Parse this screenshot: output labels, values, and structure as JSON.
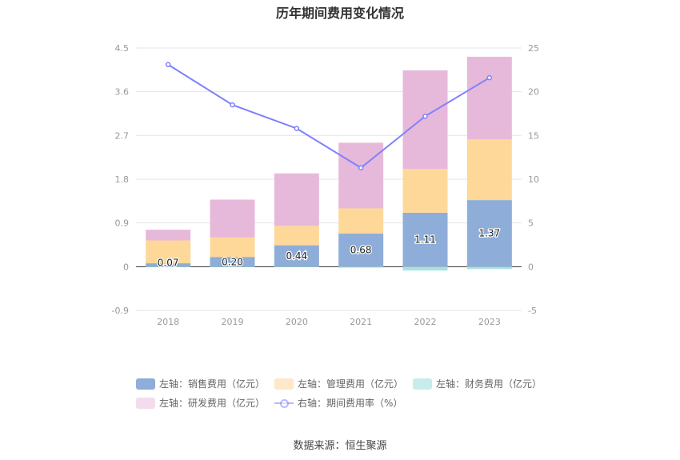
{
  "title": "历年期间费用变化情况",
  "source": "数据来源：恒生聚源",
  "colors": {
    "sales": "#8eadd8",
    "admin": "#fdd899",
    "finance": "#aedfe0",
    "rd": "#e6b9da",
    "rate": "#8080ff"
  },
  "chart_data": {
    "type": "bar",
    "categories": [
      "2018",
      "2019",
      "2020",
      "2021",
      "2022",
      "2023"
    ],
    "left_axis": {
      "ticks": [
        "4.5",
        "3.6",
        "2.7",
        "1.8",
        "0.9",
        "0",
        "-0.9"
      ],
      "ylim": [
        -0.9,
        4.5
      ]
    },
    "right_axis": {
      "ticks": [
        "25",
        "20",
        "15",
        "10",
        "5",
        "0",
        "-5"
      ],
      "ylim": [
        -5,
        25
      ]
    },
    "series": [
      {
        "name": "左轴：销售费用（亿元）",
        "key": "sales",
        "stack": true,
        "values": [
          0.07,
          0.2,
          0.44,
          0.68,
          1.11,
          1.37
        ],
        "labels": [
          "0.07",
          "0.20",
          "0.44",
          "0.68",
          "1.11",
          "1.37"
        ]
      },
      {
        "name": "左轴：管理费用（亿元）",
        "key": "admin",
        "stack": true,
        "values": [
          0.47,
          0.4,
          0.4,
          0.52,
          0.9,
          1.25
        ]
      },
      {
        "name": "左轴：财务费用（亿元）",
        "key": "finance",
        "stack": true,
        "values": [
          -0.01,
          -0.01,
          -0.01,
          -0.02,
          -0.08,
          -0.05
        ]
      },
      {
        "name": "左轴：研发费用（亿元）",
        "key": "rd",
        "stack": true,
        "values": [
          0.22,
          0.78,
          1.08,
          1.35,
          2.03,
          1.7
        ]
      },
      {
        "name": "右轴：期间费用率（%）",
        "key": "rate",
        "type": "line",
        "axis": "right",
        "values": [
          23.1,
          18.5,
          15.8,
          11.3,
          17.2,
          21.6
        ]
      }
    ],
    "grid": true,
    "legend_position": "bottom"
  }
}
